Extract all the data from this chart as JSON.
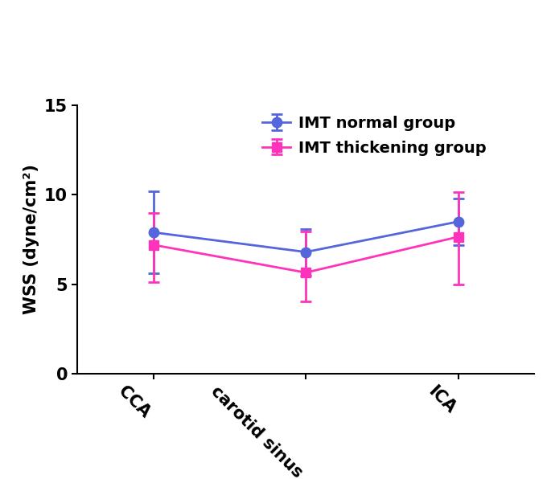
{
  "categories": [
    "CCA",
    "carotid sinus",
    "ICA"
  ],
  "x_positions": [
    0,
    1,
    2
  ],
  "normal_group": {
    "label": "IMT normal group",
    "color": "#5566DD",
    "marker": "o",
    "markersize": 9,
    "means": [
      7.9,
      6.8,
      8.5
    ],
    "err_lower": [
      2.3,
      1.3,
      1.3
    ],
    "err_upper": [
      2.3,
      1.3,
      1.3
    ]
  },
  "thickening_group": {
    "label": "IMT thickening group",
    "color": "#FF33BB",
    "marker": "s",
    "markersize": 9,
    "means": [
      7.2,
      5.65,
      7.65
    ],
    "err_lower": [
      2.1,
      1.6,
      2.65
    ],
    "err_upper": [
      1.8,
      2.3,
      2.5
    ]
  },
  "ylabel": "WSS (dyne/cm²)",
  "ylim": [
    0,
    15
  ],
  "yticks": [
    0,
    5,
    10,
    15
  ],
  "linewidth": 2.0,
  "capsize": 5,
  "bg_color": "#ffffff",
  "tick_label_fontsize": 15,
  "axis_label_fontsize": 15,
  "legend_fontsize": 14,
  "tick_rotation": -45,
  "figure_width": 6.85,
  "figure_height": 5.96
}
